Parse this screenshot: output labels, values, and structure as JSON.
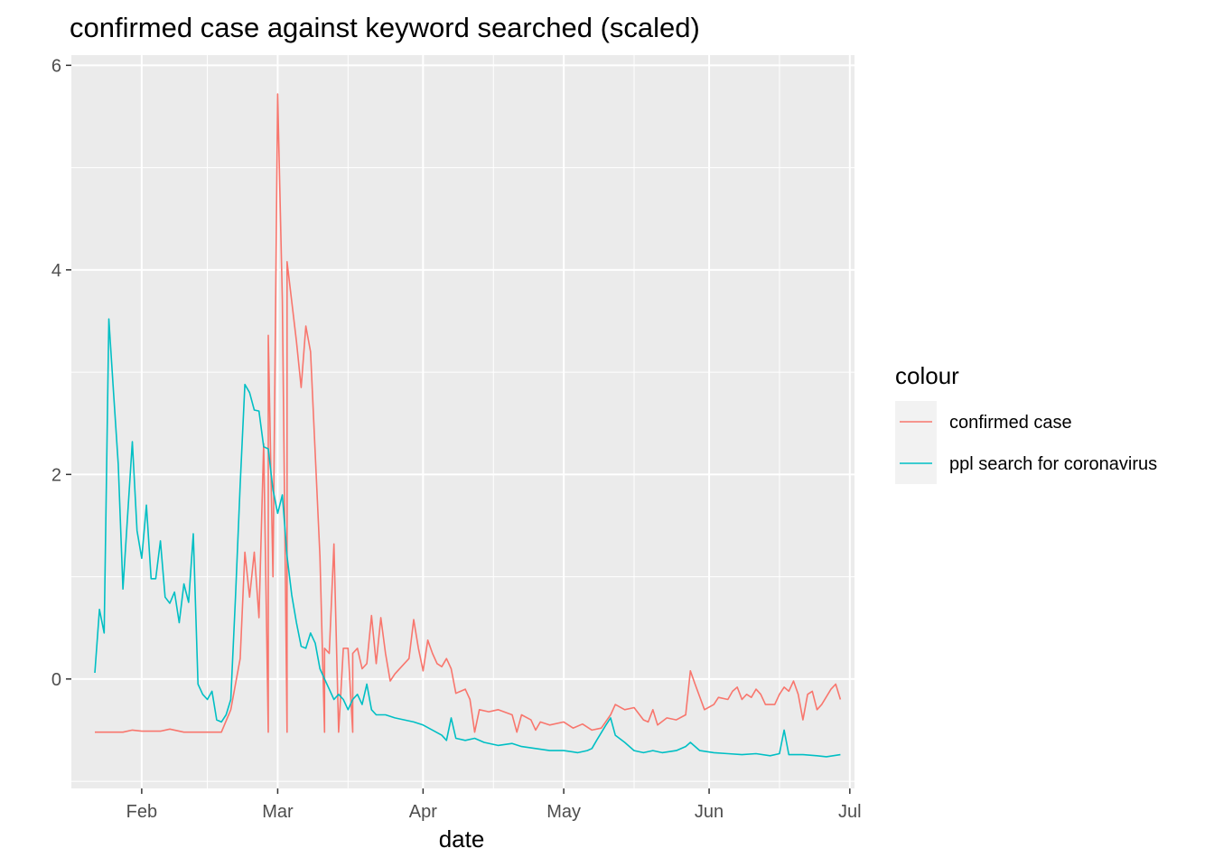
{
  "chart_data": {
    "type": "line",
    "title": "confirmed case against keyword searched (scaled)",
    "xlabel": "date",
    "ylabel": "",
    "xlim": [
      "2020-01-17",
      "2020-07-02"
    ],
    "ylim": [
      -1.07,
      6.1
    ],
    "x_ticks": [
      {
        "date": "2020-02-01",
        "label": "Feb"
      },
      {
        "date": "2020-03-01",
        "label": "Mar"
      },
      {
        "date": "2020-04-01",
        "label": "Apr"
      },
      {
        "date": "2020-05-01",
        "label": "May"
      },
      {
        "date": "2020-06-01",
        "label": "Jun"
      },
      {
        "date": "2020-07-01",
        "label": "Jul"
      }
    ],
    "y_ticks": [
      0,
      2,
      4,
      6
    ],
    "grid": true,
    "legend": {
      "title": "colour",
      "position": "right"
    },
    "series": [
      {
        "name": "confirmed case",
        "color": "#F8766D",
        "points": [
          [
            "2020-01-22",
            -0.52
          ],
          [
            "2020-01-28",
            -0.52
          ],
          [
            "2020-01-30",
            -0.5
          ],
          [
            "2020-02-01",
            -0.51
          ],
          [
            "2020-02-05",
            -0.51
          ],
          [
            "2020-02-07",
            -0.49
          ],
          [
            "2020-02-10",
            -0.52
          ],
          [
            "2020-02-14",
            -0.52
          ],
          [
            "2020-02-18",
            -0.52
          ],
          [
            "2020-02-20",
            -0.3
          ],
          [
            "2020-02-22",
            0.2
          ],
          [
            "2020-02-23",
            1.24
          ],
          [
            "2020-02-24",
            0.8
          ],
          [
            "2020-02-25",
            1.24
          ],
          [
            "2020-02-26",
            0.6
          ],
          [
            "2020-02-27",
            2.3
          ],
          [
            "2020-02-28",
            -0.52
          ],
          [
            "2020-02-28",
            3.36
          ],
          [
            "2020-02-29",
            1.0
          ],
          [
            "2020-03-01",
            5.72
          ],
          [
            "2020-03-02",
            3.7
          ],
          [
            "2020-03-03",
            -0.52
          ],
          [
            "2020-03-03",
            4.08
          ],
          [
            "2020-03-05",
            3.3
          ],
          [
            "2020-03-06",
            2.85
          ],
          [
            "2020-03-07",
            3.45
          ],
          [
            "2020-03-08",
            3.2
          ],
          [
            "2020-03-09",
            2.2
          ],
          [
            "2020-03-10",
            1.2
          ],
          [
            "2020-03-11",
            -0.52
          ],
          [
            "2020-03-11",
            0.3
          ],
          [
            "2020-03-12",
            0.25
          ],
          [
            "2020-03-13",
            1.32
          ],
          [
            "2020-03-14",
            -0.52
          ],
          [
            "2020-03-15",
            0.3
          ],
          [
            "2020-03-16",
            0.3
          ],
          [
            "2020-03-17",
            -0.52
          ],
          [
            "2020-03-17",
            0.25
          ],
          [
            "2020-03-18",
            0.3
          ],
          [
            "2020-03-19",
            0.1
          ],
          [
            "2020-03-20",
            0.15
          ],
          [
            "2020-03-21",
            0.62
          ],
          [
            "2020-03-22",
            0.15
          ],
          [
            "2020-03-23",
            0.6
          ],
          [
            "2020-03-24",
            0.25
          ],
          [
            "2020-03-25",
            -0.02
          ],
          [
            "2020-03-26",
            0.05
          ],
          [
            "2020-03-28",
            0.15
          ],
          [
            "2020-03-29",
            0.2
          ],
          [
            "2020-03-30",
            0.58
          ],
          [
            "2020-03-31",
            0.3
          ],
          [
            "2020-04-01",
            0.08
          ],
          [
            "2020-04-02",
            0.38
          ],
          [
            "2020-04-03",
            0.25
          ],
          [
            "2020-04-04",
            0.15
          ],
          [
            "2020-04-05",
            0.12
          ],
          [
            "2020-04-06",
            0.2
          ],
          [
            "2020-04-07",
            0.1
          ],
          [
            "2020-04-08",
            -0.14
          ],
          [
            "2020-04-10",
            -0.1
          ],
          [
            "2020-04-11",
            -0.2
          ],
          [
            "2020-04-12",
            -0.52
          ],
          [
            "2020-04-13",
            -0.3
          ],
          [
            "2020-04-15",
            -0.32
          ],
          [
            "2020-04-17",
            -0.3
          ],
          [
            "2020-04-20",
            -0.35
          ],
          [
            "2020-04-21",
            -0.52
          ],
          [
            "2020-04-22",
            -0.35
          ],
          [
            "2020-04-24",
            -0.4
          ],
          [
            "2020-04-25",
            -0.5
          ],
          [
            "2020-04-26",
            -0.42
          ],
          [
            "2020-04-28",
            -0.45
          ],
          [
            "2020-05-01",
            -0.42
          ],
          [
            "2020-05-03",
            -0.48
          ],
          [
            "2020-05-05",
            -0.44
          ],
          [
            "2020-05-07",
            -0.5
          ],
          [
            "2020-05-09",
            -0.48
          ],
          [
            "2020-05-11",
            -0.35
          ],
          [
            "2020-05-12",
            -0.25
          ],
          [
            "2020-05-14",
            -0.3
          ],
          [
            "2020-05-16",
            -0.28
          ],
          [
            "2020-05-18",
            -0.4
          ],
          [
            "2020-05-19",
            -0.42
          ],
          [
            "2020-05-20",
            -0.3
          ],
          [
            "2020-05-21",
            -0.45
          ],
          [
            "2020-05-23",
            -0.38
          ],
          [
            "2020-05-25",
            -0.4
          ],
          [
            "2020-05-27",
            -0.35
          ],
          [
            "2020-05-28",
            0.08
          ],
          [
            "2020-05-29",
            -0.05
          ],
          [
            "2020-05-31",
            -0.3
          ],
          [
            "2020-06-02",
            -0.25
          ],
          [
            "2020-06-03",
            -0.18
          ],
          [
            "2020-06-05",
            -0.2
          ],
          [
            "2020-06-06",
            -0.12
          ],
          [
            "2020-06-07",
            -0.08
          ],
          [
            "2020-06-08",
            -0.2
          ],
          [
            "2020-06-09",
            -0.15
          ],
          [
            "2020-06-10",
            -0.18
          ],
          [
            "2020-06-11",
            -0.1
          ],
          [
            "2020-06-12",
            -0.15
          ],
          [
            "2020-06-13",
            -0.25
          ],
          [
            "2020-06-15",
            -0.25
          ],
          [
            "2020-06-16",
            -0.15
          ],
          [
            "2020-06-17",
            -0.08
          ],
          [
            "2020-06-18",
            -0.12
          ],
          [
            "2020-06-19",
            -0.02
          ],
          [
            "2020-06-20",
            -0.15
          ],
          [
            "2020-06-21",
            -0.4
          ],
          [
            "2020-06-22",
            -0.15
          ],
          [
            "2020-06-23",
            -0.12
          ],
          [
            "2020-06-24",
            -0.3
          ],
          [
            "2020-06-25",
            -0.25
          ],
          [
            "2020-06-27",
            -0.1
          ],
          [
            "2020-06-28",
            -0.05
          ],
          [
            "2020-06-29",
            -0.2
          ]
        ]
      },
      {
        "name": "ppl search for coronavirus",
        "color": "#00BFC4",
        "points": [
          [
            "2020-01-22",
            0.06
          ],
          [
            "2020-01-23",
            0.68
          ],
          [
            "2020-01-24",
            0.45
          ],
          [
            "2020-01-25",
            3.52
          ],
          [
            "2020-01-26",
            2.8
          ],
          [
            "2020-01-27",
            2.1
          ],
          [
            "2020-01-28",
            0.88
          ],
          [
            "2020-01-30",
            2.32
          ],
          [
            "2020-01-31",
            1.45
          ],
          [
            "2020-02-01",
            1.18
          ],
          [
            "2020-02-02",
            1.7
          ],
          [
            "2020-02-03",
            0.98
          ],
          [
            "2020-02-04",
            0.98
          ],
          [
            "2020-02-05",
            1.35
          ],
          [
            "2020-02-06",
            0.8
          ],
          [
            "2020-02-07",
            0.74
          ],
          [
            "2020-02-08",
            0.85
          ],
          [
            "2020-02-09",
            0.55
          ],
          [
            "2020-02-10",
            0.93
          ],
          [
            "2020-02-11",
            0.75
          ],
          [
            "2020-02-12",
            1.42
          ],
          [
            "2020-02-13",
            -0.05
          ],
          [
            "2020-02-14",
            -0.15
          ],
          [
            "2020-02-15",
            -0.2
          ],
          [
            "2020-02-16",
            -0.12
          ],
          [
            "2020-02-17",
            -0.4
          ],
          [
            "2020-02-18",
            -0.42
          ],
          [
            "2020-02-19",
            -0.35
          ],
          [
            "2020-02-20",
            -0.2
          ],
          [
            "2020-02-21",
            0.8
          ],
          [
            "2020-02-22",
            1.9
          ],
          [
            "2020-02-23",
            2.88
          ],
          [
            "2020-02-24",
            2.8
          ],
          [
            "2020-02-25",
            2.63
          ],
          [
            "2020-02-26",
            2.62
          ],
          [
            "2020-02-27",
            2.27
          ],
          [
            "2020-02-28",
            2.25
          ],
          [
            "2020-02-29",
            1.85
          ],
          [
            "2020-03-01",
            1.62
          ],
          [
            "2020-03-02",
            1.8
          ],
          [
            "2020-03-03",
            1.2
          ],
          [
            "2020-03-04",
            0.82
          ],
          [
            "2020-03-05",
            0.55
          ],
          [
            "2020-03-06",
            0.32
          ],
          [
            "2020-03-07",
            0.3
          ],
          [
            "2020-03-08",
            0.45
          ],
          [
            "2020-03-09",
            0.35
          ],
          [
            "2020-03-10",
            0.1
          ],
          [
            "2020-03-11",
            0.0
          ],
          [
            "2020-03-12",
            -0.1
          ],
          [
            "2020-03-13",
            -0.2
          ],
          [
            "2020-03-14",
            -0.15
          ],
          [
            "2020-03-15",
            -0.2
          ],
          [
            "2020-03-16",
            -0.3
          ],
          [
            "2020-03-17",
            -0.2
          ],
          [
            "2020-03-18",
            -0.15
          ],
          [
            "2020-03-19",
            -0.25
          ],
          [
            "2020-03-20",
            -0.05
          ],
          [
            "2020-03-21",
            -0.3
          ],
          [
            "2020-03-22",
            -0.35
          ],
          [
            "2020-03-24",
            -0.35
          ],
          [
            "2020-03-26",
            -0.38
          ],
          [
            "2020-03-28",
            -0.4
          ],
          [
            "2020-03-30",
            -0.42
          ],
          [
            "2020-04-01",
            -0.45
          ],
          [
            "2020-04-03",
            -0.5
          ],
          [
            "2020-04-05",
            -0.55
          ],
          [
            "2020-04-06",
            -0.6
          ],
          [
            "2020-04-07",
            -0.38
          ],
          [
            "2020-04-08",
            -0.58
          ],
          [
            "2020-04-10",
            -0.6
          ],
          [
            "2020-04-12",
            -0.58
          ],
          [
            "2020-04-14",
            -0.62
          ],
          [
            "2020-04-17",
            -0.65
          ],
          [
            "2020-04-20",
            -0.63
          ],
          [
            "2020-04-22",
            -0.66
          ],
          [
            "2020-04-25",
            -0.68
          ],
          [
            "2020-04-28",
            -0.7
          ],
          [
            "2020-05-01",
            -0.7
          ],
          [
            "2020-05-04",
            -0.72
          ],
          [
            "2020-05-06",
            -0.7
          ],
          [
            "2020-05-07",
            -0.68
          ],
          [
            "2020-05-08",
            -0.6
          ],
          [
            "2020-05-10",
            -0.45
          ],
          [
            "2020-05-11",
            -0.38
          ],
          [
            "2020-05-12",
            -0.55
          ],
          [
            "2020-05-14",
            -0.62
          ],
          [
            "2020-05-16",
            -0.7
          ],
          [
            "2020-05-18",
            -0.72
          ],
          [
            "2020-05-20",
            -0.7
          ],
          [
            "2020-05-22",
            -0.72
          ],
          [
            "2020-05-25",
            -0.7
          ],
          [
            "2020-05-27",
            -0.66
          ],
          [
            "2020-05-28",
            -0.62
          ],
          [
            "2020-05-30",
            -0.7
          ],
          [
            "2020-06-02",
            -0.72
          ],
          [
            "2020-06-05",
            -0.73
          ],
          [
            "2020-06-08",
            -0.74
          ],
          [
            "2020-06-11",
            -0.73
          ],
          [
            "2020-06-14",
            -0.75
          ],
          [
            "2020-06-16",
            -0.73
          ],
          [
            "2020-06-17",
            -0.5
          ],
          [
            "2020-06-18",
            -0.74
          ],
          [
            "2020-06-21",
            -0.74
          ],
          [
            "2020-06-24",
            -0.75
          ],
          [
            "2020-06-26",
            -0.76
          ],
          [
            "2020-06-29",
            -0.74
          ]
        ]
      }
    ]
  }
}
